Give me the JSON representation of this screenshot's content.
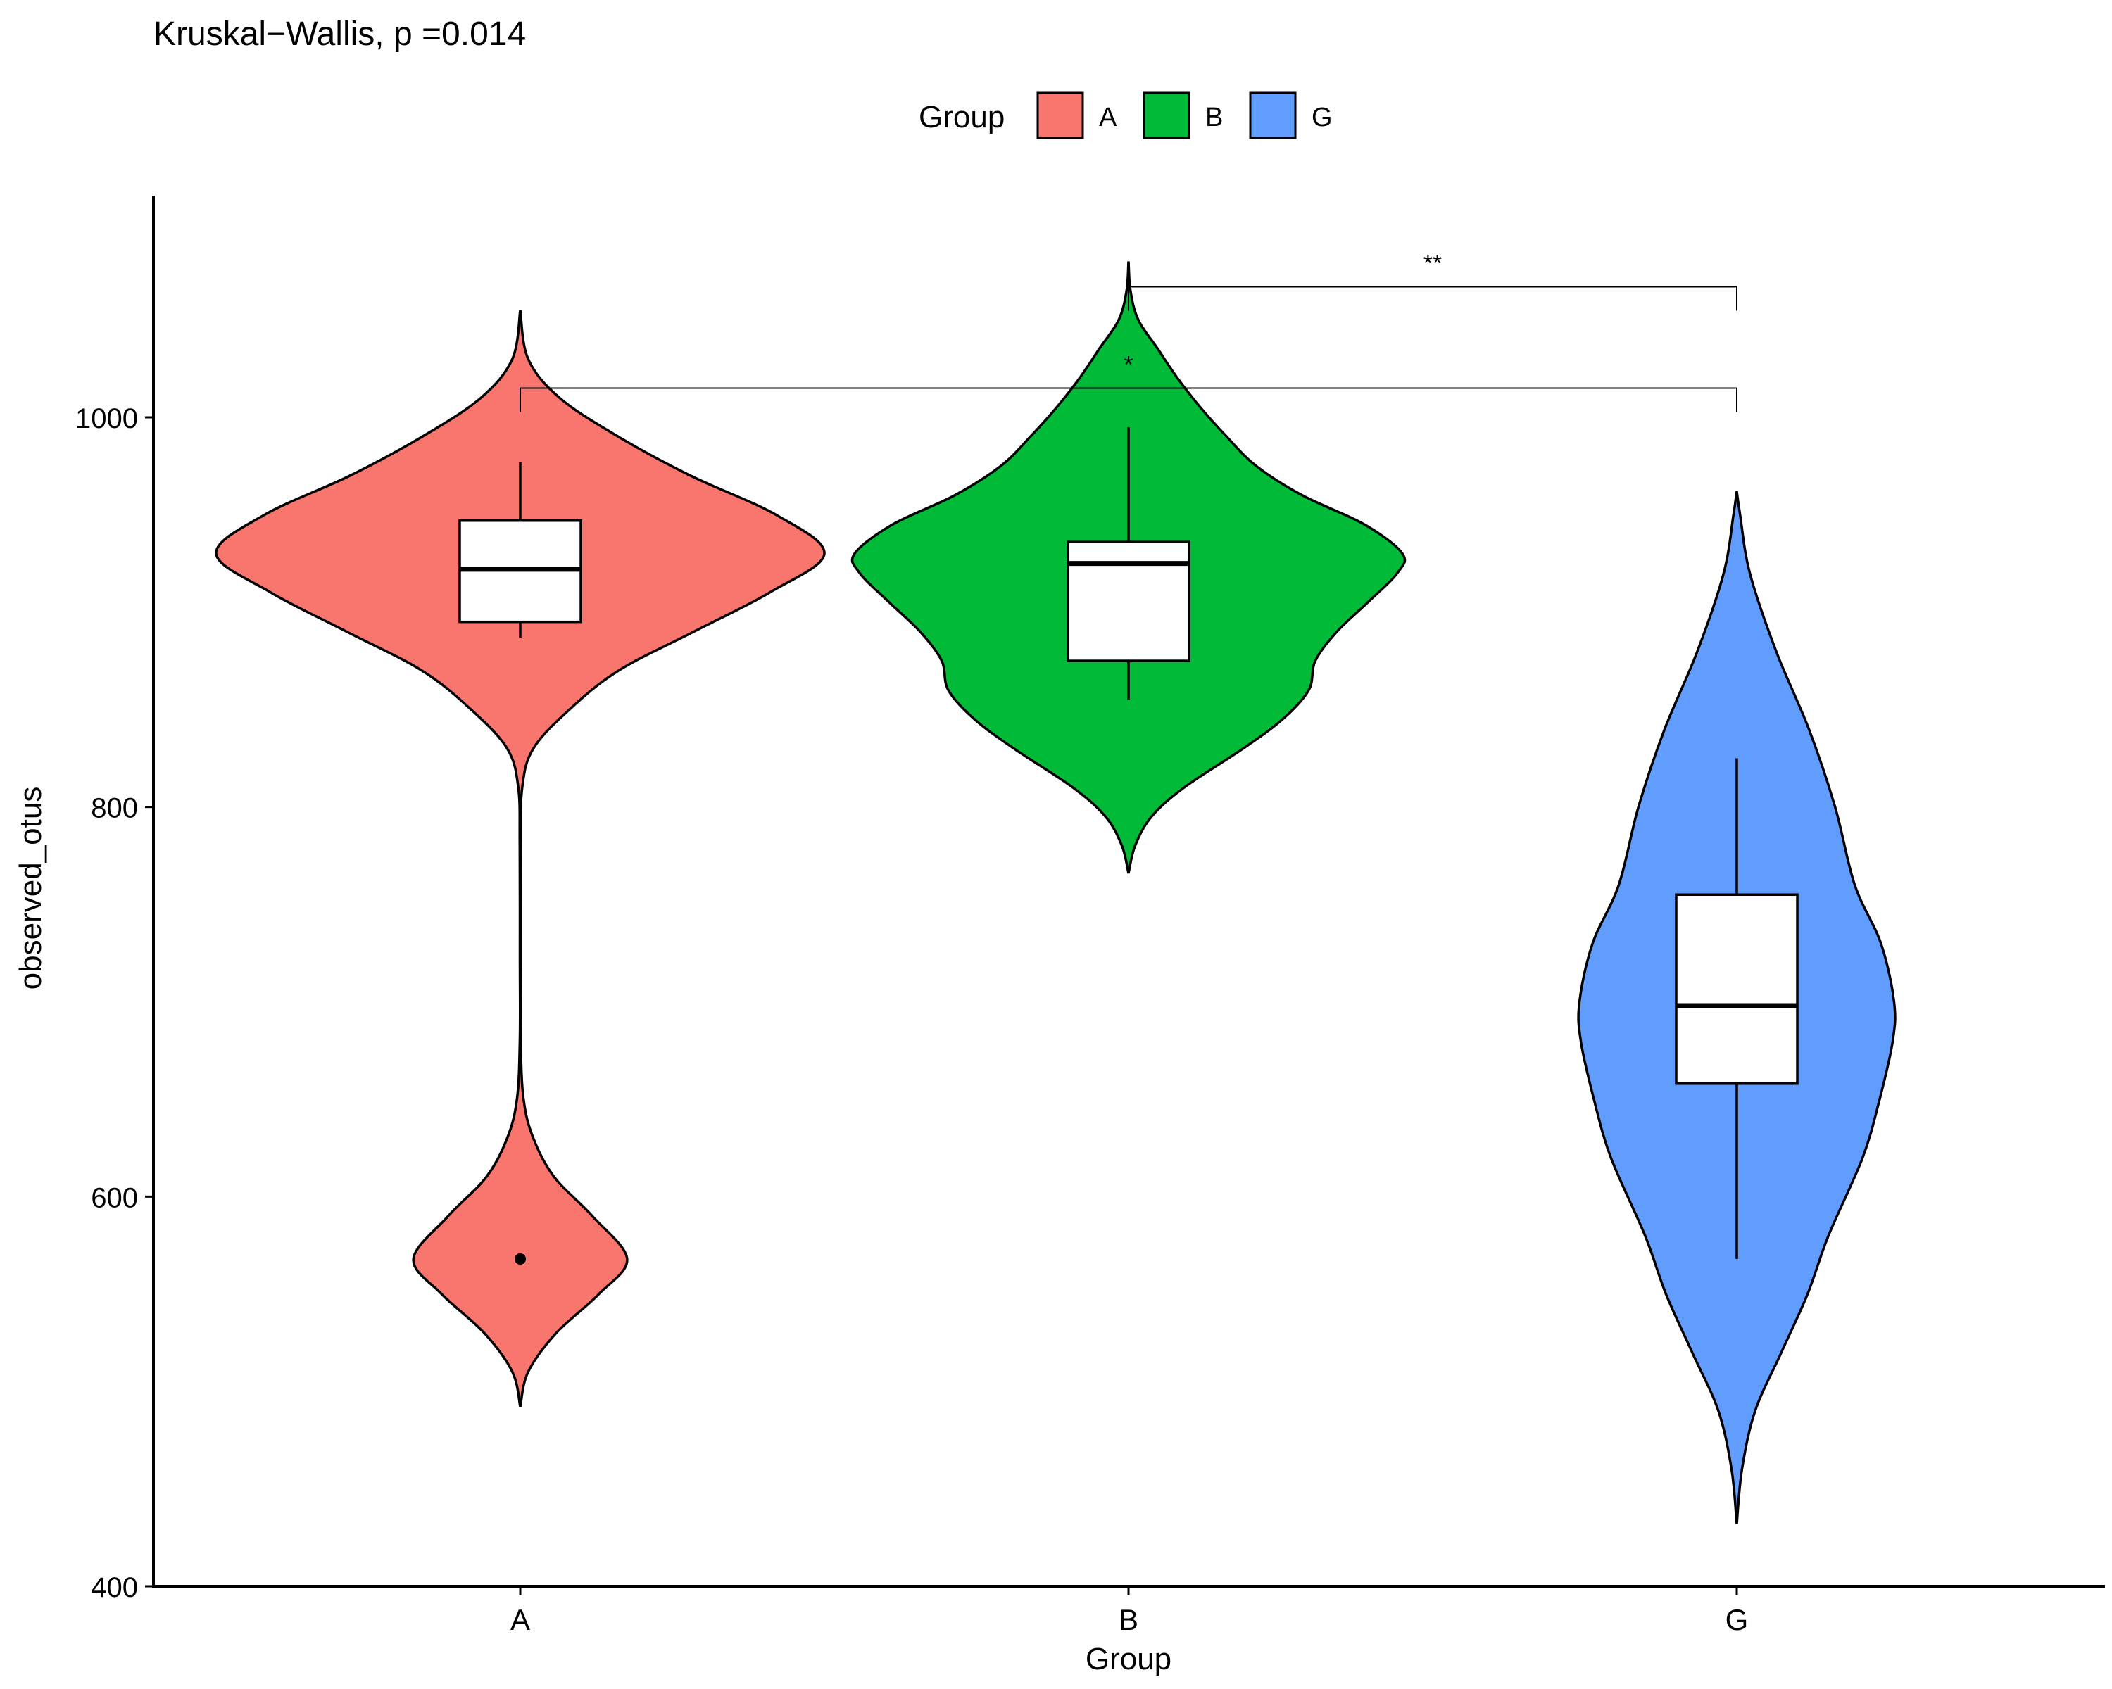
{
  "chart_data": {
    "type": "violin",
    "title": "Kruskal−Wallis, p =0.014",
    "xlabel": "Group",
    "ylabel": "observed_otus",
    "categories": [
      "A",
      "B",
      "G"
    ],
    "ylim": [
      400,
      1100
    ],
    "yticks": [
      400,
      600,
      800,
      1000
    ],
    "grid": false,
    "legend": {
      "title": "Group",
      "position": "top",
      "entries": [
        {
          "label": "A",
          "color": "#F8766D"
        },
        {
          "label": "B",
          "color": "#00BA38"
        },
        {
          "label": "G",
          "color": "#619CFF"
        }
      ]
    },
    "series": [
      {
        "group": "A",
        "color": "#F8766D",
        "range": [
          492,
          1055
        ],
        "boxplot": {
          "q1": 895,
          "median": 922,
          "q3": 947,
          "whisker_low": 887,
          "whisker_high": 977
        },
        "outliers": [
          568
        ],
        "density": [
          [
            492,
            0
          ],
          [
            510,
            12
          ],
          [
            530,
            55
          ],
          [
            550,
            120
          ],
          [
            568,
            163
          ],
          [
            590,
            110
          ],
          [
            610,
            52
          ],
          [
            630,
            20
          ],
          [
            650,
            5
          ],
          [
            680,
            0.6
          ],
          [
            720,
            0.5
          ],
          [
            780,
            0.8
          ],
          [
            810,
            3
          ],
          [
            830,
            20
          ],
          [
            850,
            75
          ],
          [
            870,
            150
          ],
          [
            890,
            265
          ],
          [
            910,
            380
          ],
          [
            930,
            464
          ],
          [
            950,
            390
          ],
          [
            970,
            260
          ],
          [
            990,
            150
          ],
          [
            1010,
            60
          ],
          [
            1030,
            12
          ],
          [
            1055,
            0
          ]
        ]
      },
      {
        "group": "B",
        "color": "#00BA38",
        "range": [
          766,
          1080
        ],
        "boxplot": {
          "q1": 875,
          "median": 925,
          "q3": 936,
          "whisker_low": 855,
          "whisker_high": 995
        },
        "outliers": [],
        "density": [
          [
            766,
            0
          ],
          [
            780,
            10
          ],
          [
            795,
            35
          ],
          [
            810,
            85
          ],
          [
            830,
            175
          ],
          [
            845,
            235
          ],
          [
            860,
            275
          ],
          [
            875,
            285
          ],
          [
            890,
            318
          ],
          [
            905,
            365
          ],
          [
            920,
            410
          ],
          [
            930,
            418
          ],
          [
            945,
            360
          ],
          [
            960,
            265
          ],
          [
            975,
            195
          ],
          [
            990,
            150
          ],
          [
            1005,
            110
          ],
          [
            1020,
            75
          ],
          [
            1035,
            45
          ],
          [
            1050,
            15
          ],
          [
            1065,
            3
          ],
          [
            1080,
            0
          ]
        ]
      },
      {
        "group": "G",
        "color": "#619CFF",
        "range": [
          432,
          962
        ],
        "boxplot": {
          "q1": 658,
          "median": 698,
          "q3": 755,
          "whisker_low": 568,
          "whisker_high": 825
        },
        "outliers": [],
        "density": [
          [
            432,
            0
          ],
          [
            460,
            8
          ],
          [
            490,
            28
          ],
          [
            520,
            68
          ],
          [
            550,
            108
          ],
          [
            580,
            140
          ],
          [
            620,
            192
          ],
          [
            650,
            218
          ],
          [
            680,
            238
          ],
          [
            700,
            240
          ],
          [
            730,
            220
          ],
          [
            760,
            180
          ],
          [
            800,
            150
          ],
          [
            840,
            110
          ],
          [
            880,
            60
          ],
          [
            920,
            20
          ],
          [
            950,
            5
          ],
          [
            962,
            0
          ]
        ]
      }
    ],
    "significance": [
      {
        "from": "A",
        "to": "G",
        "y": 1015,
        "label": "*"
      },
      {
        "from": "B",
        "to": "G",
        "y": 1067,
        "label": "**"
      }
    ]
  }
}
